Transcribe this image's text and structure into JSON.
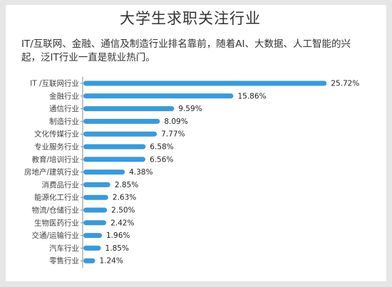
{
  "title": "大学生求职关注行业",
  "subtitle": "IT/互联网、金融、通信及制造行业排名靠前，随着AI、大数据、人工智能的兴起，泛IT行业一直是就业热门。",
  "colors": {
    "bar": "#3a9ad9",
    "background": "#e6e6e6",
    "card": "#ffffff"
  },
  "chart_data": {
    "type": "bar",
    "orientation": "horizontal",
    "title": "大学生求职关注行业",
    "categories": [
      "IT /互联网行业",
      "金融行业",
      "通信行业",
      "制造行业",
      "文化传媒行业",
      "专业服务行业",
      "教育/培训行业",
      "房地产/建筑行业",
      "消费品行业",
      "能源化工行业",
      "物流/仓储行业",
      "生物医药行业",
      "交通/运输行业",
      "汽车行业",
      "零售行业"
    ],
    "values": [
      25.72,
      15.86,
      9.59,
      8.09,
      7.77,
      6.58,
      6.56,
      4.38,
      2.85,
      2.63,
      2.5,
      2.42,
      1.96,
      1.85,
      1.24
    ],
    "value_labels": [
      "25.72%",
      "15.86%",
      "9.59%",
      "8.09%",
      "7.77%",
      "6.58%",
      "6.56%",
      "4.38%",
      "2.85%",
      "2.63%",
      "2.50%",
      "2.42%",
      "1.96%",
      "1.85%",
      "1.24%"
    ],
    "xlim": [
      0,
      26
    ],
    "grid": false,
    "legend": "none"
  }
}
